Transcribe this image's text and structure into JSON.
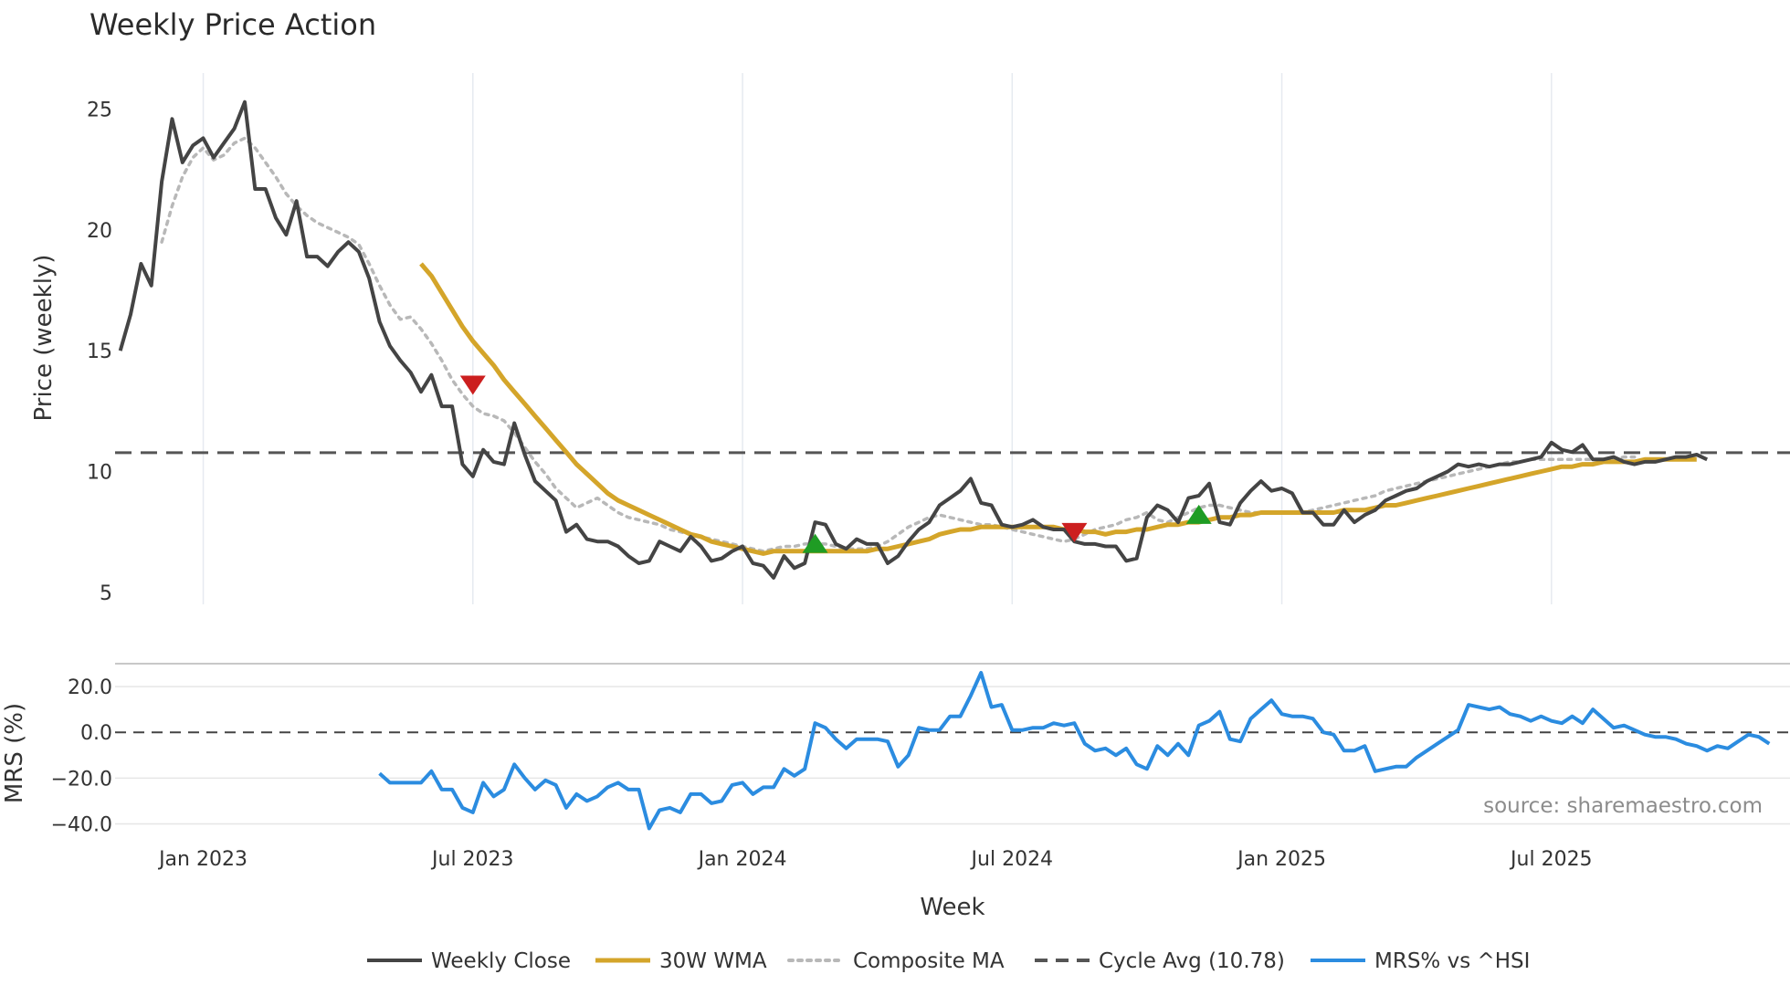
{
  "chart_data": {
    "type": "line",
    "title": "Weekly Price Action",
    "xlabel": "Week",
    "x_ticks": [
      {
        "label": "Jan 2023",
        "week": 12
      },
      {
        "label": "Jul 2023",
        "week": 38
      },
      {
        "label": "Jan 2024",
        "week": 64
      },
      {
        "label": "Jul 2024",
        "week": 90
      },
      {
        "label": "Jan 2025",
        "week": 116
      },
      {
        "label": "Jul 2025",
        "week": 142
      }
    ],
    "x_range": [
      3.5,
      165
    ],
    "price_panel": {
      "ylabel": "Price (weekly)",
      "ylim": [
        4.5,
        26.5
      ],
      "y_ticks": [
        "5",
        "10",
        "15",
        "20",
        "25"
      ],
      "grid": "vertical"
    },
    "mrs_panel": {
      "ylabel": "MRS (%)",
      "ylim": [
        -43,
        30
      ],
      "y_ticks": [
        "20.0",
        "0.0",
        "−20.0",
        "−40.0"
      ],
      "grid": "horizontal",
      "zero_line": 0
    },
    "series": [
      {
        "name": "Weekly Close",
        "panel": "price",
        "color": "#444444",
        "style": "solid",
        "start_week": 4,
        "values": [
          15.0,
          16.5,
          18.6,
          17.7,
          22.0,
          24.6,
          22.8,
          23.5,
          23.8,
          23.0,
          23.6,
          24.2,
          25.3,
          21.7,
          21.7,
          20.5,
          19.8,
          21.2,
          18.9,
          18.9,
          18.5,
          19.1,
          19.5,
          19.1,
          18.0,
          16.2,
          15.2,
          14.6,
          14.1,
          13.3,
          14.0,
          12.7,
          12.7,
          10.3,
          9.8,
          10.9,
          10.4,
          10.3,
          12.0,
          10.7,
          9.6,
          9.2,
          8.8,
          7.5,
          7.8,
          7.2,
          7.1,
          7.1,
          6.9,
          6.5,
          6.2,
          6.3,
          7.1,
          6.9,
          6.7,
          7.3,
          6.9,
          6.3,
          6.4,
          6.7,
          6.9,
          6.2,
          6.1,
          5.6,
          6.5,
          6.0,
          6.2,
          7.9,
          7.8,
          7.0,
          6.8,
          7.2,
          7.0,
          7.0,
          6.2,
          6.5,
          7.1,
          7.6,
          7.9,
          8.6,
          8.9,
          9.2,
          9.7,
          8.7,
          8.6,
          7.8,
          7.7,
          7.8,
          8.0,
          7.7,
          7.6,
          7.6,
          7.1,
          7.0,
          7.0,
          6.9,
          6.9,
          6.3,
          6.4,
          8.1,
          8.6,
          8.4,
          7.9,
          8.9,
          9.0,
          9.5,
          7.9,
          7.8,
          8.7,
          9.2,
          9.6,
          9.2,
          9.3,
          9.1,
          8.3,
          8.3,
          7.8,
          7.8,
          8.4,
          7.9,
          8.2,
          8.4,
          8.8,
          9.0,
          9.2,
          9.3,
          9.6,
          9.8,
          10.0,
          10.3,
          10.2,
          10.3,
          10.2,
          10.3,
          10.3,
          10.4,
          10.5,
          10.6,
          11.2,
          10.9,
          10.8,
          11.1,
          10.5,
          10.5,
          10.6,
          10.4,
          10.3,
          10.4,
          10.4,
          10.5,
          10.6,
          10.6,
          10.7,
          10.5
        ]
      },
      {
        "name": "30W WMA",
        "panel": "price",
        "color": "#d4a52a",
        "style": "solid",
        "start_week": 33,
        "values": [
          18.6,
          18.1,
          17.4,
          16.7,
          16.0,
          15.4,
          14.9,
          14.4,
          13.8,
          13.3,
          12.8,
          12.3,
          11.8,
          11.3,
          10.8,
          10.3,
          9.9,
          9.5,
          9.1,
          8.8,
          8.6,
          8.4,
          8.2,
          8.0,
          7.8,
          7.6,
          7.4,
          7.3,
          7.1,
          7.0,
          6.9,
          6.8,
          6.7,
          6.6,
          6.7,
          6.7,
          6.7,
          6.7,
          6.7,
          6.7,
          6.7,
          6.7,
          6.7,
          6.7,
          6.8,
          6.8,
          6.9,
          7.0,
          7.1,
          7.2,
          7.4,
          7.5,
          7.6,
          7.6,
          7.7,
          7.7,
          7.7,
          7.7,
          7.7,
          7.7,
          7.7,
          7.7,
          7.6,
          7.6,
          7.5,
          7.5,
          7.4,
          7.5,
          7.5,
          7.6,
          7.6,
          7.7,
          7.8,
          7.8,
          7.9,
          7.9,
          8.0,
          8.1,
          8.1,
          8.2,
          8.2,
          8.3,
          8.3,
          8.3,
          8.3,
          8.3,
          8.3,
          8.3,
          8.3,
          8.4,
          8.4,
          8.4,
          8.5,
          8.6,
          8.6,
          8.7,
          8.8,
          8.9,
          9.0,
          9.1,
          9.2,
          9.3,
          9.4,
          9.5,
          9.6,
          9.7,
          9.8,
          9.9,
          10.0,
          10.1,
          10.2,
          10.2,
          10.3,
          10.3,
          10.4,
          10.4,
          10.4,
          10.4,
          10.5,
          10.5,
          10.5,
          10.5,
          10.5,
          10.5
        ]
      },
      {
        "name": "Composite MA",
        "panel": "price",
        "color": "#b8b8b8",
        "style": "dotted",
        "start_week": 8,
        "values": [
          19.5,
          21.0,
          22.2,
          23.0,
          23.4,
          22.9,
          23.1,
          23.6,
          23.8,
          23.4,
          22.8,
          22.2,
          21.5,
          21.0,
          20.6,
          20.3,
          20.1,
          19.9,
          19.7,
          19.4,
          18.6,
          17.7,
          16.9,
          16.3,
          16.4,
          15.9,
          15.3,
          14.6,
          13.8,
          13.2,
          12.7,
          12.4,
          12.3,
          12.1,
          11.6,
          11.0,
          10.4,
          9.9,
          9.3,
          8.9,
          8.5,
          8.7,
          8.9,
          8.6,
          8.3,
          8.1,
          8.0,
          7.9,
          7.8,
          7.6,
          7.5,
          7.4,
          7.3,
          7.2,
          7.1,
          7.0,
          6.9,
          6.8,
          6.7,
          6.8,
          6.9,
          6.9,
          7.0,
          7.0,
          7.0,
          6.9,
          6.8,
          6.8,
          6.8,
          6.9,
          7.1,
          7.4,
          7.7,
          7.9,
          8.1,
          8.2,
          8.1,
          8.0,
          7.9,
          7.8,
          7.8,
          7.7,
          7.6,
          7.5,
          7.4,
          7.3,
          7.2,
          7.1,
          7.2,
          7.4,
          7.6,
          7.7,
          7.8,
          8.0,
          8.1,
          8.3,
          8.0,
          7.9,
          8.1,
          8.3,
          8.5,
          8.6,
          8.6,
          8.5,
          8.4,
          8.3,
          8.3,
          8.3,
          8.3,
          8.3,
          8.3,
          8.4,
          8.5,
          8.6,
          8.7,
          8.8,
          8.9,
          9.0,
          9.2,
          9.3,
          9.4,
          9.5,
          9.6,
          9.7,
          9.8,
          9.9,
          10.0,
          10.1,
          10.2,
          10.3,
          10.4,
          10.4,
          10.5,
          10.5,
          10.5,
          10.5,
          10.5,
          10.5,
          10.5,
          10.5,
          10.5,
          10.6,
          10.6
        ]
      },
      {
        "name": "Cycle Avg (10.78)",
        "panel": "price",
        "color": "#555555",
        "style": "dashed",
        "value": 10.78
      },
      {
        "name": "MRS% vs ^HSI",
        "panel": "mrs",
        "color": "#2b8ce0",
        "style": "solid",
        "start_week": 29,
        "values": [
          -18,
          -22,
          -22,
          -22,
          -22,
          -17,
          -25,
          -25,
          -33,
          -35,
          -22,
          -28,
          -25,
          -14,
          -20,
          -25,
          -21,
          -23,
          -33,
          -27,
          -30,
          -28,
          -24,
          -22,
          -25,
          -25,
          -42,
          -34,
          -33,
          -35,
          -27,
          -27,
          -31,
          -30,
          -23,
          -22,
          -27,
          -24,
          -24,
          -16,
          -19,
          -16,
          4,
          2,
          -3,
          -7,
          -3,
          -3,
          -3,
          -4,
          -15,
          -10,
          2,
          1,
          1,
          7,
          7,
          16,
          26,
          11,
          12,
          1,
          1,
          2,
          2,
          4,
          3,
          4,
          -5,
          -8,
          -7,
          -10,
          -7,
          -14,
          -16,
          -6,
          -10,
          -5,
          -10,
          3,
          5,
          9,
          -3,
          -4,
          6,
          10,
          14,
          8,
          7,
          7,
          6,
          0,
          -1,
          -8,
          -8,
          -6,
          -17,
          -16,
          -15,
          -15,
          -11,
          -8,
          -5,
          -2,
          1,
          12,
          11,
          10,
          11,
          8,
          7,
          5,
          7,
          5,
          4,
          7,
          4,
          10,
          6,
          2,
          3,
          1,
          -1,
          -2,
          -2,
          -3,
          -5,
          -6,
          -8,
          -6,
          -7,
          -4,
          -1,
          -2,
          -5
        ]
      }
    ],
    "signals": [
      {
        "type": "sell",
        "week": 38,
        "price": 13.6,
        "color": "#cc1f1f"
      },
      {
        "type": "buy",
        "week": 71,
        "price": 7.0,
        "color": "#1f9c24"
      },
      {
        "type": "sell",
        "week": 96,
        "price": 7.5,
        "color": "#cc1f1f"
      },
      {
        "type": "buy",
        "week": 108,
        "price": 8.2,
        "color": "#1f9c24"
      }
    ],
    "annotation": "source: sharemaestro.com",
    "legend_position": "bottom-center"
  }
}
